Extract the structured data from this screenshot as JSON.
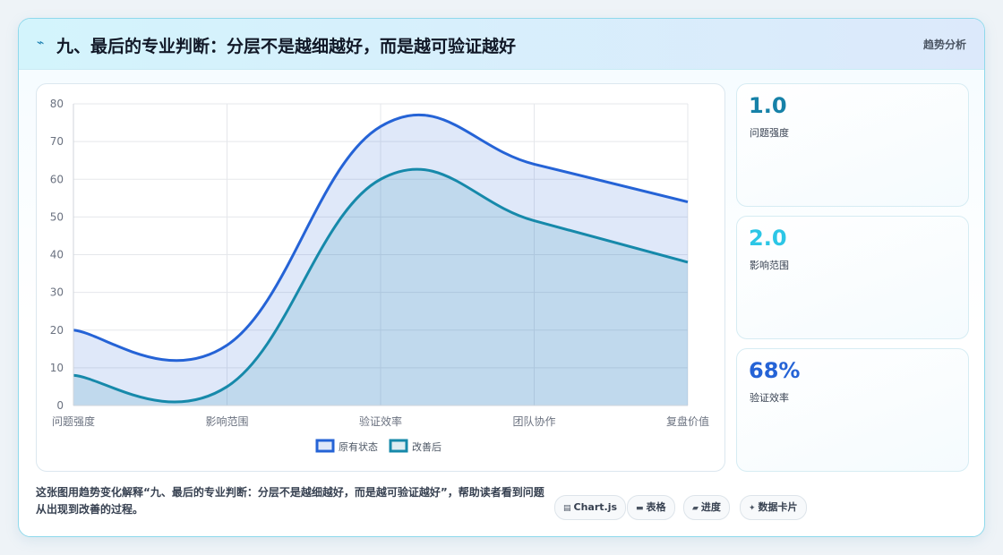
{
  "header": {
    "icon": "lightning-icon",
    "title": "九、最后的专业判断：分层不是越细越好，而是越可验证越好",
    "tag": "趋势分析"
  },
  "stats": [
    {
      "value": "1.0",
      "label": "问题强度",
      "color": "#1681a8"
    },
    {
      "value": "2.0",
      "label": "影响范围",
      "color": "#2cc6e6"
    },
    {
      "value": "68%",
      "label": "验证效率",
      "color": "#2563d6"
    }
  ],
  "footer": {
    "description": "这张图用趋势变化解释“九、最后的专业判断：分层不是越细越好，而是越可验证越好”，帮助读者看到问题从出现到改善的过程。",
    "pills": [
      {
        "icon": "chart-icon",
        "label": "Chart.js"
      },
      {
        "icon": "table-icon",
        "label": "表格"
      },
      {
        "icon": "progress-icon",
        "label": "进度"
      },
      {
        "icon": "sparkle-icon",
        "label": "数据卡片"
      }
    ]
  },
  "chart_data": {
    "type": "area",
    "categories": [
      "问题强度",
      "影响范围",
      "验证效率",
      "团队协作",
      "复盘价值"
    ],
    "series": [
      {
        "name": "原有状态",
        "values": [
          20,
          16,
          74,
          64,
          54
        ],
        "color": "#2563d6",
        "fill": "rgba(37,99,214,0.15)"
      },
      {
        "name": "改善后",
        "values": [
          8,
          5,
          60,
          49,
          38
        ],
        "color": "#1689aa",
        "fill": "rgba(22,137,170,0.15)"
      }
    ],
    "ylim": [
      0,
      80
    ],
    "yticks": [
      0,
      10,
      20,
      30,
      40,
      50,
      60,
      70,
      80
    ],
    "grid": true,
    "legend": "bottom"
  }
}
